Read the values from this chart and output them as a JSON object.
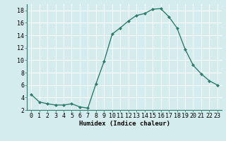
{
  "x": [
    0,
    1,
    2,
    3,
    4,
    5,
    6,
    7,
    8,
    9,
    10,
    11,
    12,
    13,
    14,
    15,
    16,
    17,
    18,
    19,
    20,
    21,
    22,
    23
  ],
  "y": [
    4.5,
    3.3,
    3.0,
    2.8,
    2.8,
    3.0,
    2.5,
    2.3,
    6.2,
    9.8,
    14.2,
    15.2,
    16.3,
    17.2,
    17.5,
    18.2,
    18.3,
    17.0,
    15.2,
    11.8,
    9.2,
    7.8,
    6.7,
    6.0
  ],
  "line_color": "#2e7d6e",
  "marker": "D",
  "marker_size": 2.0,
  "bg_color": "#d4eced",
  "grid_color": "#ffffff",
  "xlabel": "Humidex (Indice chaleur)",
  "ylim": [
    2,
    19
  ],
  "xlim": [
    -0.5,
    23.5
  ],
  "yticks": [
    2,
    4,
    6,
    8,
    10,
    12,
    14,
    16,
    18
  ],
  "xticks": [
    0,
    1,
    2,
    3,
    4,
    5,
    6,
    7,
    8,
    9,
    10,
    11,
    12,
    13,
    14,
    15,
    16,
    17,
    18,
    19,
    20,
    21,
    22,
    23
  ],
  "xlabel_fontsize": 6.5,
  "tick_fontsize": 6.0,
  "line_width": 1.0
}
